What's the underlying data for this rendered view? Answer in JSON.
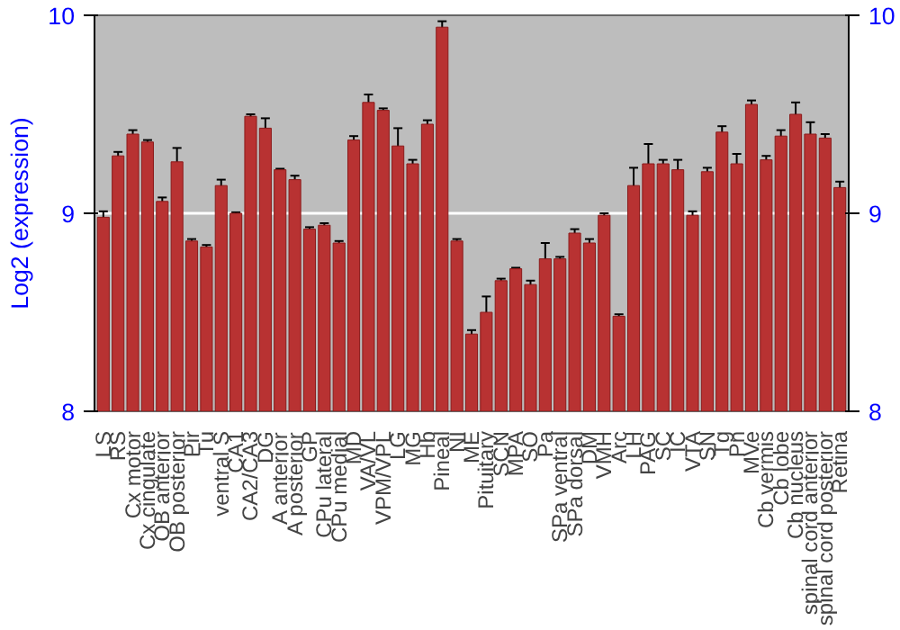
{
  "chart_data": {
    "type": "bar",
    "ylabel": "Log2 (expression)",
    "categories": [
      "LS",
      "RS",
      "Cx motor",
      "Cx cingulate",
      "OB anterior",
      "OB posterior",
      "Pir",
      "Tu",
      "ventral S",
      "CA1",
      "CA2/CA3",
      "DG",
      "A anterior",
      "A posterior",
      "GP",
      "CPu lateral",
      "CPu medial",
      "MD",
      "VA/VL",
      "VPM/VPL",
      "LG",
      "MG",
      "Hb",
      "Pineal",
      "NI",
      "ME",
      "Pituitary",
      "SCN",
      "MPA",
      "SO",
      "Pa",
      "SPa ventral",
      "SPa dorsal",
      "DM",
      "VMH",
      "Arc",
      "LH",
      "PAG",
      "SC",
      "IC",
      "VTA",
      "SN",
      "Tg",
      "Pn",
      "MVe",
      "Cb vermis",
      "Cb lobe",
      "Cb nucleus",
      "spinal cord anterior",
      "spinal cord posterior",
      "Retina"
    ],
    "values": [
      8.98,
      9.29,
      9.4,
      9.36,
      9.06,
      9.26,
      8.86,
      8.83,
      9.14,
      9.0,
      9.49,
      9.43,
      9.22,
      9.17,
      8.92,
      8.94,
      8.85,
      9.37,
      9.56,
      9.52,
      9.34,
      9.25,
      9.45,
      9.94,
      8.86,
      8.39,
      8.5,
      8.66,
      8.72,
      8.64,
      8.77,
      8.77,
      8.9,
      8.85,
      8.99,
      8.48,
      9.14,
      9.25,
      9.25,
      9.22,
      8.99,
      9.21,
      9.41,
      9.25,
      9.55,
      9.27,
      9.39,
      9.5,
      9.4,
      9.38,
      9.13
    ],
    "errors": [
      0.03,
      0.02,
      0.02,
      0.01,
      0.02,
      0.07,
      0.01,
      0.01,
      0.03,
      0.005,
      0.01,
      0.05,
      0.005,
      0.02,
      0.01,
      0.01,
      0.01,
      0.02,
      0.04,
      0.01,
      0.09,
      0.02,
      0.02,
      0.03,
      0.01,
      0.02,
      0.08,
      0.01,
      0.005,
      0.02,
      0.08,
      0.01,
      0.02,
      0.02,
      0.01,
      0.01,
      0.09,
      0.1,
      0.02,
      0.05,
      0.02,
      0.02,
      0.03,
      0.05,
      0.02,
      0.02,
      0.03,
      0.06,
      0.06,
      0.02,
      0.03
    ],
    "color": "#b83232",
    "ylim": [
      8,
      10
    ],
    "yticks": [
      8,
      9,
      10
    ],
    "y2lim": [
      8,
      10
    ],
    "y2ticks": [
      8,
      9,
      10
    ],
    "grid": "y"
  }
}
